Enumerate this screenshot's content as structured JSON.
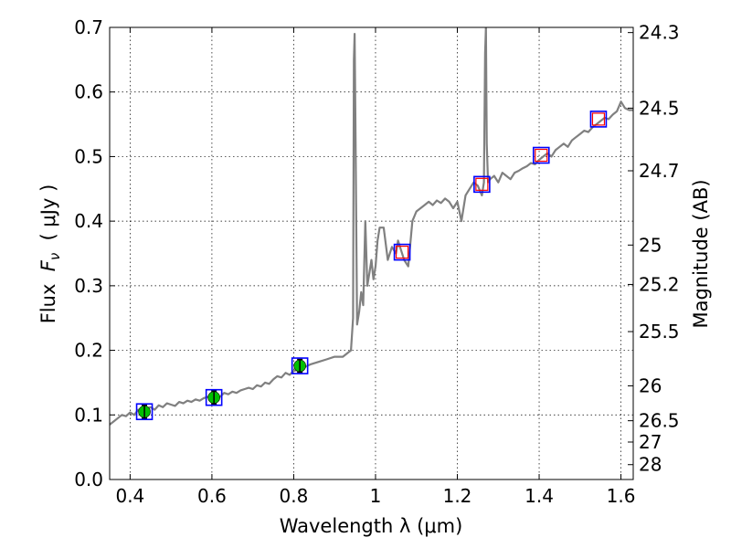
{
  "chart_data": {
    "type": "line",
    "xlabel": "Wavelength  λ (μm)",
    "ylabel": "Flux  F_ν  ( μJy )",
    "ylabel_parts": {
      "prefix": "Flux  ",
      "symbol": "F",
      "subscript": "ν",
      "suffix": "  ( μJy )"
    },
    "ylabel_right": "Magnitude (AB)",
    "xlim": [
      0.35,
      1.63
    ],
    "ylim": [
      0.0,
      0.7
    ],
    "grid": true,
    "x_ticks": [
      0.4,
      0.6,
      0.8,
      1.0,
      1.2,
      1.4,
      1.6
    ],
    "x_tick_labels": [
      "0.4",
      "0.6",
      "0.8",
      "1",
      "1.2",
      "1.4",
      "1.6"
    ],
    "y_ticks": [
      0.0,
      0.1,
      0.2,
      0.3,
      0.4,
      0.5,
      0.6,
      0.7
    ],
    "y_tick_labels": [
      "0.0",
      "0.1",
      "0.2",
      "0.3",
      "0.4",
      "0.5",
      "0.6",
      "0.7"
    ],
    "right_ticks": [
      {
        "label": "24.3",
        "flux": 0.692
      },
      {
        "label": "24.5",
        "flux": 0.575
      },
      {
        "label": "24.7",
        "flux": 0.478
      },
      {
        "label": "25",
        "flux": 0.363
      },
      {
        "label": "25.2",
        "flux": 0.302
      },
      {
        "label": "25.5",
        "flux": 0.229
      },
      {
        "label": "26",
        "flux": 0.145
      },
      {
        "label": "26.5",
        "flux": 0.091
      },
      {
        "label": "27",
        "flux": 0.058
      },
      {
        "label": "28",
        "flux": 0.023
      }
    ],
    "series": [
      {
        "color": "#808080",
        "x": [
          0.35,
          0.36,
          0.37,
          0.38,
          0.39,
          0.4,
          0.41,
          0.42,
          0.43,
          0.44,
          0.45,
          0.46,
          0.47,
          0.48,
          0.49,
          0.5,
          0.51,
          0.52,
          0.53,
          0.54,
          0.55,
          0.56,
          0.57,
          0.58,
          0.59,
          0.6,
          0.61,
          0.62,
          0.63,
          0.64,
          0.65,
          0.66,
          0.67,
          0.68,
          0.69,
          0.7,
          0.71,
          0.72,
          0.73,
          0.74,
          0.75,
          0.76,
          0.77,
          0.78,
          0.79,
          0.8,
          0.82,
          0.84,
          0.86,
          0.88,
          0.9,
          0.92,
          0.93,
          0.94,
          0.945,
          0.947,
          0.949,
          0.951,
          0.955,
          0.96,
          0.965,
          0.97,
          0.975,
          0.98,
          0.985,
          0.99,
          0.995,
          1.0,
          1.005,
          1.01,
          1.015,
          1.02,
          1.03,
          1.04,
          1.05,
          1.055,
          1.06,
          1.07,
          1.08,
          1.09,
          1.1,
          1.11,
          1.12,
          1.13,
          1.14,
          1.15,
          1.16,
          1.17,
          1.18,
          1.19,
          1.2,
          1.21,
          1.22,
          1.23,
          1.24,
          1.25,
          1.26,
          1.265,
          1.268,
          1.27,
          1.272,
          1.275,
          1.28,
          1.29,
          1.3,
          1.31,
          1.32,
          1.33,
          1.34,
          1.35,
          1.36,
          1.37,
          1.38,
          1.39,
          1.4,
          1.41,
          1.42,
          1.43,
          1.44,
          1.45,
          1.46,
          1.47,
          1.48,
          1.49,
          1.5,
          1.51,
          1.52,
          1.53,
          1.54,
          1.55,
          1.56,
          1.57,
          1.58,
          1.59,
          1.6,
          1.61,
          1.62,
          1.63
        ],
        "y": [
          0.085,
          0.09,
          0.095,
          0.1,
          0.098,
          0.104,
          0.1,
          0.108,
          0.106,
          0.11,
          0.112,
          0.108,
          0.115,
          0.112,
          0.118,
          0.116,
          0.114,
          0.12,
          0.118,
          0.122,
          0.12,
          0.124,
          0.122,
          0.126,
          0.128,
          0.126,
          0.13,
          0.128,
          0.134,
          0.132,
          0.136,
          0.134,
          0.138,
          0.14,
          0.142,
          0.14,
          0.146,
          0.144,
          0.15,
          0.148,
          0.155,
          0.16,
          0.158,
          0.165,
          0.162,
          0.168,
          0.172,
          0.178,
          0.182,
          0.186,
          0.19,
          0.19,
          0.195,
          0.2,
          0.25,
          0.65,
          0.69,
          0.55,
          0.24,
          0.26,
          0.29,
          0.27,
          0.4,
          0.3,
          0.32,
          0.34,
          0.31,
          0.33,
          0.37,
          0.39,
          0.39,
          0.39,
          0.34,
          0.36,
          0.35,
          0.37,
          0.36,
          0.34,
          0.33,
          0.4,
          0.415,
          0.42,
          0.425,
          0.43,
          0.425,
          0.432,
          0.428,
          0.435,
          0.43,
          0.42,
          0.43,
          0.4,
          0.44,
          0.45,
          0.46,
          0.455,
          0.44,
          0.46,
          0.66,
          0.7,
          0.52,
          0.46,
          0.465,
          0.47,
          0.46,
          0.475,
          0.47,
          0.465,
          0.475,
          0.478,
          0.482,
          0.485,
          0.49,
          0.488,
          0.495,
          0.5,
          0.505,
          0.5,
          0.51,
          0.515,
          0.52,
          0.515,
          0.525,
          0.53,
          0.535,
          0.54,
          0.538,
          0.545,
          0.55,
          0.555,
          0.56,
          0.558,
          0.565,
          0.57,
          0.585,
          0.575,
          0.572,
          0.572
        ]
      }
    ],
    "model_points": {
      "marker": "open square",
      "color": "#0000ff",
      "x": [
        0.435,
        0.605,
        0.815,
        1.065,
        1.26,
        1.405,
        1.545
      ],
      "y": [
        0.105,
        0.127,
        0.176,
        0.352,
        0.457,
        0.502,
        0.558
      ]
    },
    "observed_points": {
      "color": "#00c000",
      "x": [
        0.435,
        0.605,
        0.815
      ],
      "y": [
        0.105,
        0.127,
        0.176
      ],
      "yerr": [
        0.01,
        0.01,
        0.01
      ]
    },
    "upper_limits": {
      "marker": "open square",
      "color": "#ff0000",
      "x": [
        1.065,
        1.26,
        1.405,
        1.545
      ],
      "y": [
        0.352,
        0.457,
        0.502,
        0.558
      ]
    }
  }
}
